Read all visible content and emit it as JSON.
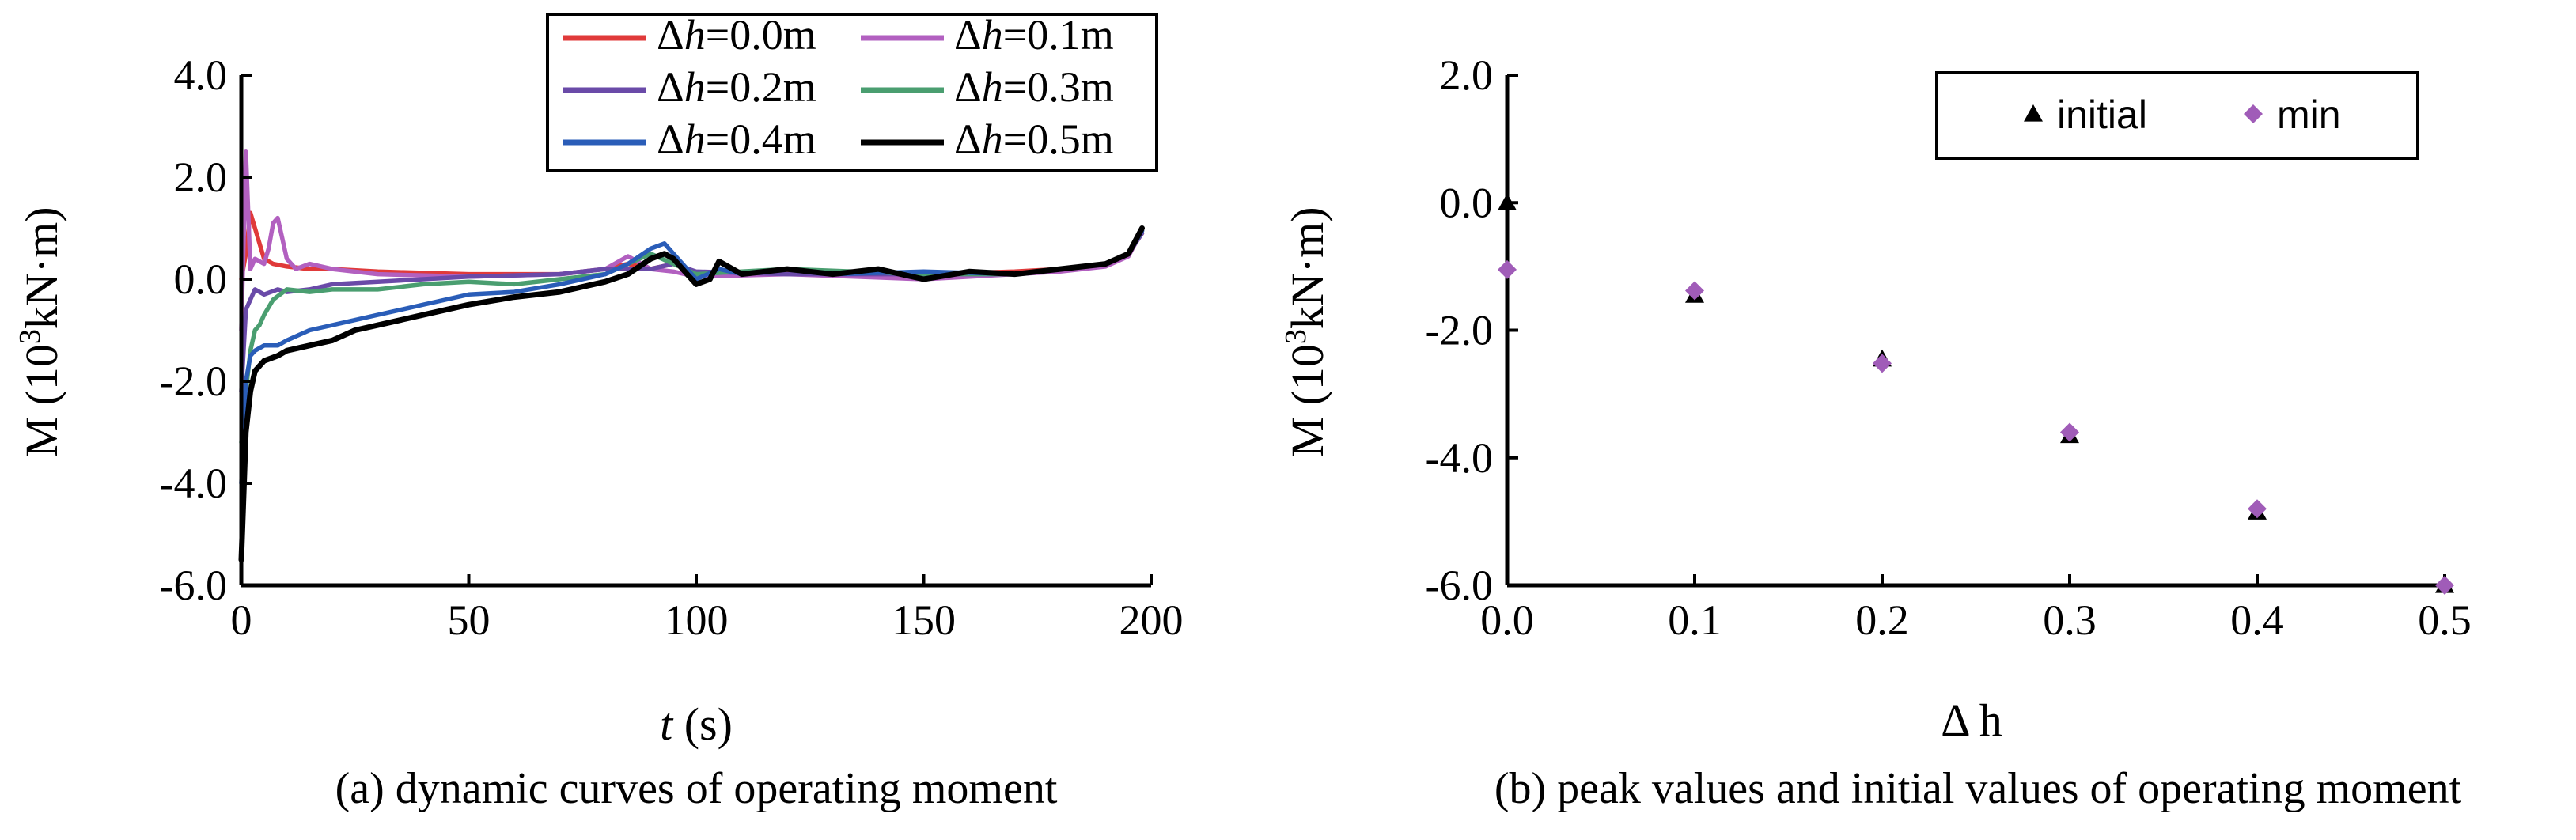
{
  "chart_data": [
    {
      "type": "line",
      "panel": "(a)",
      "caption": "(a) dynamic curves of operating moment",
      "xlabel_var": "t",
      "xlabel_unit": " (s)",
      "ylabel": "M (10³kN·m)",
      "ylabel_base": "M (10",
      "ylabel_exp": "3",
      "ylabel_unit": "kN·m)",
      "xlim": [
        0,
        200
      ],
      "ylim": [
        -6,
        4
      ],
      "xticks": [
        0,
        50,
        100,
        150,
        200
      ],
      "xtick_labels": [
        "0",
        "50",
        "100",
        "150",
        "200"
      ],
      "yticks": [
        4,
        2,
        0,
        -2,
        -4,
        -6
      ],
      "ytick_labels": [
        "4.0",
        "2.0",
        "0.0",
        "-2.0",
        "-4.0",
        "-6.0"
      ],
      "legend_loc": "top-right",
      "series": [
        {
          "name": "Δh=0.0m",
          "var": "h",
          "prefix": "Δ",
          "value": "=0.0m",
          "color": "#e03a3a",
          "x": [
            0,
            1,
            2,
            3,
            5,
            7,
            10,
            15,
            20,
            30,
            50,
            70,
            80,
            85,
            90,
            95,
            100,
            120,
            150,
            170,
            180,
            190,
            195,
            198
          ],
          "y": [
            0.0,
            0.5,
            1.3,
            1.0,
            0.4,
            0.3,
            0.25,
            0.2,
            0.2,
            0.15,
            0.1,
            0.1,
            0.2,
            0.3,
            0.2,
            0.3,
            0.1,
            0.15,
            0.1,
            0.15,
            0.2,
            0.3,
            0.5,
            0.9
          ]
        },
        {
          "name": "Δh=0.1m",
          "var": "h",
          "prefix": "Δ",
          "value": "=0.1m",
          "color": "#b260c0",
          "x": [
            0,
            1,
            2,
            3,
            5,
            6,
            7,
            8,
            9,
            10,
            12,
            15,
            20,
            30,
            50,
            70,
            80,
            85,
            90,
            95,
            100,
            120,
            150,
            170,
            180,
            190,
            195,
            198
          ],
          "y": [
            -1.0,
            2.5,
            0.2,
            0.4,
            0.3,
            0.6,
            1.1,
            1.2,
            0.8,
            0.4,
            0.2,
            0.3,
            0.2,
            0.1,
            0.05,
            0.1,
            0.2,
            0.45,
            0.2,
            0.15,
            0.05,
            0.1,
            0.0,
            0.1,
            0.15,
            0.25,
            0.45,
            0.95
          ]
        },
        {
          "name": "Δh=0.2m",
          "var": "h",
          "prefix": "Δ",
          "value": "=0.2m",
          "color": "#6a4aa8",
          "x": [
            0,
            1,
            2,
            3,
            5,
            8,
            10,
            15,
            20,
            30,
            40,
            50,
            70,
            80,
            90,
            95,
            100,
            120,
            150,
            170,
            180,
            190,
            195,
            198
          ],
          "y": [
            -2.2,
            -0.6,
            -0.4,
            -0.2,
            -0.3,
            -0.2,
            -0.25,
            -0.2,
            -0.1,
            -0.05,
            0.0,
            0.05,
            0.1,
            0.2,
            0.2,
            0.3,
            0.15,
            0.1,
            0.1,
            0.1,
            0.2,
            0.3,
            0.5,
            0.9
          ]
        },
        {
          "name": "Δh=0.3m",
          "var": "h",
          "prefix": "Δ",
          "value": "=0.3m",
          "color": "#4a9e70",
          "x": [
            0,
            1,
            2,
            3,
            4,
            5,
            7,
            10,
            15,
            20,
            30,
            40,
            50,
            60,
            70,
            80,
            85,
            90,
            95,
            100,
            110,
            120,
            150,
            170,
            180,
            190,
            195,
            198
          ],
          "y": [
            -3.2,
            -2.2,
            -1.4,
            -1.0,
            -0.9,
            -0.7,
            -0.4,
            -0.2,
            -0.25,
            -0.2,
            -0.2,
            -0.1,
            -0.05,
            -0.1,
            0.0,
            0.1,
            0.3,
            0.5,
            0.3,
            0.1,
            0.15,
            0.2,
            0.1,
            0.1,
            0.2,
            0.3,
            0.5,
            0.95
          ]
        },
        {
          "name": "Δh=0.4m",
          "var": "h",
          "prefix": "Δ",
          "value": "=0.4m",
          "color": "#2a5db8",
          "x": [
            0,
            1,
            2,
            3,
            5,
            8,
            10,
            15,
            20,
            30,
            40,
            50,
            60,
            70,
            80,
            85,
            90,
            93,
            95,
            98,
            100,
            105,
            110,
            120,
            130,
            150,
            170,
            180,
            190,
            195,
            198
          ],
          "y": [
            -4.0,
            -2.0,
            -1.5,
            -1.4,
            -1.3,
            -1.3,
            -1.2,
            -1.0,
            -0.9,
            -0.7,
            -0.5,
            -0.3,
            -0.25,
            -0.1,
            0.1,
            0.3,
            0.6,
            0.7,
            0.5,
            0.2,
            0.0,
            0.2,
            0.1,
            0.2,
            0.1,
            0.15,
            0.1,
            0.2,
            0.3,
            0.5,
            0.95
          ]
        },
        {
          "name": "Δh=0.5m",
          "var": "h",
          "prefix": "Δ",
          "value": "=0.5m",
          "color": "#000000",
          "x": [
            0,
            1,
            2,
            3,
            5,
            8,
            10,
            15,
            20,
            25,
            30,
            40,
            50,
            60,
            70,
            80,
            85,
            90,
            93,
            95,
            98,
            100,
            103,
            105,
            110,
            120,
            130,
            140,
            150,
            160,
            170,
            180,
            190,
            195,
            198
          ],
          "y": [
            -5.5,
            -3.0,
            -2.2,
            -1.8,
            -1.6,
            -1.5,
            -1.4,
            -1.3,
            -1.2,
            -1.0,
            -0.9,
            -0.7,
            -0.5,
            -0.35,
            -0.25,
            -0.05,
            0.1,
            0.4,
            0.5,
            0.4,
            0.1,
            -0.1,
            0.0,
            0.35,
            0.1,
            0.2,
            0.1,
            0.2,
            0.0,
            0.15,
            0.1,
            0.2,
            0.3,
            0.5,
            1.0
          ]
        }
      ]
    },
    {
      "type": "scatter",
      "panel": "(b)",
      "caption": "(b) peak values and initial values of operating moment",
      "xlabel_var": "Δ h",
      "ylabel": "M (10³kN·m)",
      "ylabel_base": "M (10",
      "ylabel_exp": "3",
      "ylabel_unit": "kN·m)",
      "xlim": [
        0,
        0.5
      ],
      "ylim": [
        -6,
        2
      ],
      "xticks": [
        0,
        0.1,
        0.2,
        0.3,
        0.4,
        0.5
      ],
      "xtick_labels": [
        "0.0",
        "0.1",
        "0.2",
        "0.3",
        "0.4",
        "0.5"
      ],
      "yticks": [
        2,
        0,
        -2,
        -4,
        -6
      ],
      "ytick_labels": [
        "2.0",
        "0.0",
        "-2.0",
        "-4.0",
        "-6.0"
      ],
      "legend_loc": "top-right",
      "series": [
        {
          "name": "initial",
          "marker": "triangle",
          "color": "#000000",
          "x": [
            0.0,
            0.1,
            0.2,
            0.3,
            0.4,
            0.5
          ],
          "y": [
            0.0,
            -1.45,
            -2.45,
            -3.65,
            -4.85,
            -6.0
          ]
        },
        {
          "name": "min",
          "marker": "diamond",
          "color": "#a05cb8",
          "x": [
            0.0,
            0.1,
            0.2,
            0.3,
            0.4,
            0.5
          ],
          "y": [
            -1.05,
            -1.38,
            -2.52,
            -3.6,
            -4.8,
            -6.0
          ]
        }
      ]
    }
  ]
}
